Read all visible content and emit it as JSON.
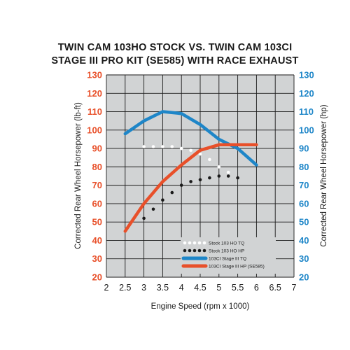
{
  "chart_data": {
    "type": "line",
    "title_line1": "TWIN CAM 103HO STOCK VS. TWIN CAM 103CI",
    "title_line2": "STAGE III PRO KIT (SE585) WITH RACE EXHAUST",
    "xlabel": "Engine Speed (rpm x 1000)",
    "ylabel_left": "Corrected Rear Wheel Horsepower (lb-ft)",
    "ylabel_right": "Corrected Rear Wheel Horsepower (hp)",
    "xlim": [
      2,
      7
    ],
    "ylim": [
      20,
      130
    ],
    "x_ticks": [
      "2",
      "2.5",
      "3",
      "3.5",
      "4",
      "4.5",
      "5",
      "5.5",
      "6",
      "6.5",
      "7"
    ],
    "y_ticks": [
      "20",
      "30",
      "40",
      "50",
      "60",
      "70",
      "80",
      "90",
      "100",
      "110",
      "120",
      "130"
    ],
    "grid": true,
    "legend_position": "bottom-right",
    "left_tick_color": "#e8502a",
    "right_tick_color": "#1e86c8",
    "series": [
      {
        "name": "Stock 103 HO TQ",
        "style": "dotted",
        "color": "#ffffff",
        "x": [
          3.0,
          3.25,
          3.5,
          3.75,
          4.0,
          4.25,
          4.5,
          4.75,
          5.0,
          5.25
        ],
        "y": [
          91,
          91,
          91,
          91,
          90,
          89,
          87,
          84,
          80,
          77
        ]
      },
      {
        "name": "Stock 103 HO HP",
        "style": "dotted",
        "color": "#1a1a1a",
        "x": [
          3.0,
          3.25,
          3.5,
          3.75,
          4.0,
          4.25,
          4.5,
          4.75,
          5.0,
          5.25,
          5.5
        ],
        "y": [
          52,
          57,
          62,
          66,
          70,
          72,
          73,
          74,
          75,
          75,
          74
        ]
      },
      {
        "name": "103CI Stage III TQ",
        "style": "solid",
        "color": "#1e86c8",
        "x": [
          2.5,
          3.0,
          3.5,
          4.0,
          4.5,
          5.0,
          5.5,
          6.0
        ],
        "y": [
          98,
          105,
          110,
          109,
          103,
          95,
          90,
          81
        ]
      },
      {
        "name": "103CI Stage III HP (SE585)",
        "style": "solid",
        "color": "#e8502a",
        "x": [
          2.5,
          3.0,
          3.5,
          4.0,
          4.5,
          5.0,
          5.5,
          6.0
        ],
        "y": [
          45,
          60,
          72,
          81,
          89,
          92,
          92,
          92
        ]
      }
    ]
  }
}
